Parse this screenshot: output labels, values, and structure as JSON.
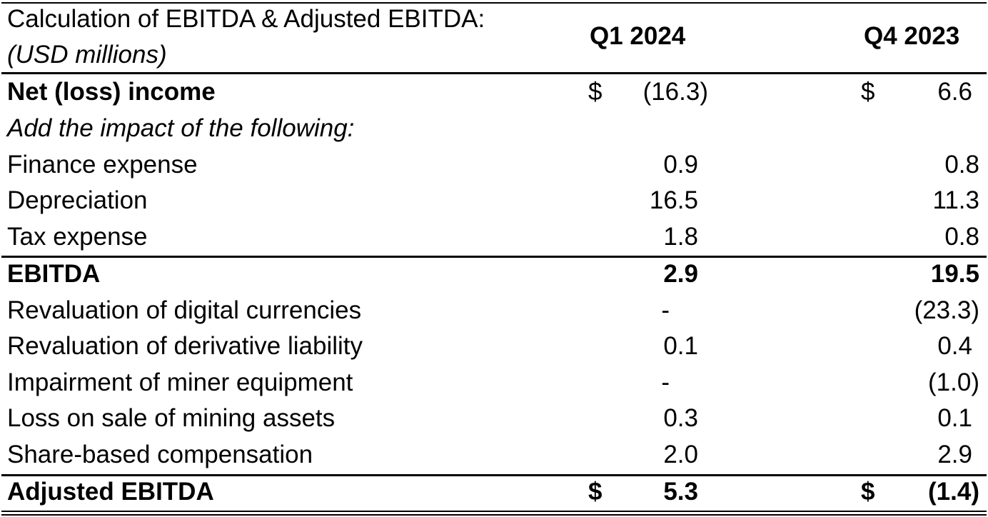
{
  "header": {
    "title_line1": "Calculation of EBITDA & Adjusted EBITDA:",
    "title_line2": "(USD millions)",
    "col1": "Q1 2024",
    "col2": "Q4 2023"
  },
  "rows": [
    {
      "label": "Net (loss) income",
      "cur1": "$",
      "v1": "(16.3)",
      "cur2": "$",
      "v2": "6.6"
    },
    {
      "label": "Add the impact of the following:",
      "v1": "",
      "v2": ""
    },
    {
      "label": "Finance expense",
      "v1": "0.9",
      "v2": "0.8"
    },
    {
      "label": "Depreciation",
      "v1": "16.5",
      "v2": "11.3"
    },
    {
      "label": "Tax expense",
      "v1": "1.8",
      "v2": "0.8"
    },
    {
      "label": "EBITDA",
      "v1": "2.9",
      "v2": "19.5"
    },
    {
      "label": "Revaluation of digital currencies",
      "v1": "-",
      "v2": "(23.3)"
    },
    {
      "label": "Revaluation of derivative liability",
      "v1": "0.1",
      "v2": "0.4"
    },
    {
      "label": "Impairment of miner equipment",
      "v1": "-",
      "v2": "(1.0)"
    },
    {
      "label": "Loss on sale of mining assets",
      "v1": "0.3",
      "v2": "0.1"
    },
    {
      "label": "Share-based compensation",
      "v1": "2.0",
      "v2": "2.9"
    },
    {
      "label": "Adjusted EBITDA",
      "cur1": "$",
      "v1": "5.3",
      "cur2": "$",
      "v2": "(1.4)"
    }
  ]
}
